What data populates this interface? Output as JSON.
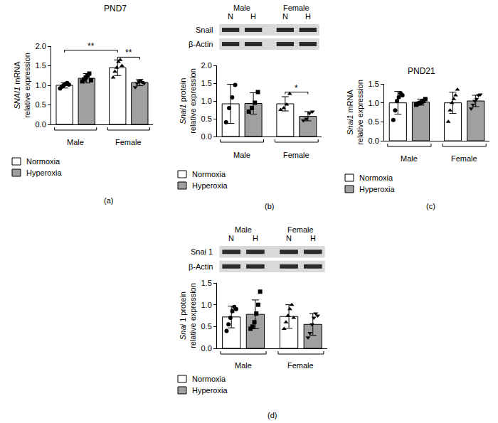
{
  "chart_data": [
    {
      "type": "bar",
      "panel": "(a)",
      "title": "PND7",
      "y_label": [
        "SNAI1 mRNA",
        "relative expression"
      ],
      "categories": [
        "Male",
        "Female"
      ],
      "series": [
        {
          "name": "Normoxia",
          "color": "#ffffff",
          "values": [
            1.0,
            1.45
          ],
          "errors": [
            0.07,
            0.2
          ],
          "markers": [
            "circle",
            "triangle-up"
          ],
          "points": [
            [
              0.92,
              0.97,
              1.0,
              1.03,
              1.06,
              1.02
            ],
            [
              1.2,
              1.35,
              1.45,
              1.6,
              1.65,
              1.5
            ]
          ]
        },
        {
          "name": "Hyperoxia",
          "color": "#a0a0a0",
          "values": [
            1.18,
            1.07
          ],
          "errors": [
            0.12,
            0.08
          ],
          "markers": [
            "square",
            "triangle-down"
          ],
          "points": [
            [
              1.1,
              1.15,
              1.2,
              1.25,
              1.3,
              1.13
            ],
            [
              0.95,
              1.05,
              1.1,
              1.12,
              1.08,
              1.05
            ]
          ]
        }
      ],
      "ylim": [
        0,
        2.0
      ],
      "yticks": [
        {
          "value": 0,
          "label": "0.0"
        },
        0.5,
        {
          "value": 1,
          "label": "1.0"
        },
        1.5,
        {
          "value": 2,
          "label": "2.0"
        }
      ],
      "significance": [
        {
          "text": "**",
          "from": 0,
          "to": 2,
          "y": 1.9
        },
        {
          "text": "**",
          "from": 2,
          "to": 3,
          "y": 1.72
        }
      ],
      "tick_labels": "y"
    },
    {
      "type": "bar",
      "panel": "(b)",
      "y_label": [
        "Snai1 protein",
        "relative expression"
      ],
      "blot": {
        "groups": [
          "Male",
          "Female"
        ],
        "lanes": [
          "N",
          "H",
          "N",
          "H"
        ],
        "rows": [
          "Snail",
          "β-Actin"
        ]
      },
      "categories": [
        "Male",
        "Female"
      ],
      "series": [
        {
          "name": "Normoxia",
          "color": "#ffffff",
          "values": [
            0.92,
            0.92
          ],
          "errors": [
            0.55,
            0.2
          ],
          "markers": [
            "circle",
            "triangle-up"
          ],
          "points": [
            [
              0.4,
              0.8,
              1.1,
              1.45
            ],
            [
              0.75,
              0.8,
              0.9,
              1.2
            ]
          ]
        },
        {
          "name": "Hyperoxia",
          "color": "#a0a0a0",
          "values": [
            0.93,
            0.57
          ],
          "errors": [
            0.3,
            0.13
          ],
          "markers": [
            "square",
            "triangle-down"
          ],
          "points": [
            [
              0.7,
              0.8,
              0.95,
              1.25
            ],
            [
              0.45,
              0.5,
              0.65,
              0.7
            ]
          ]
        }
      ],
      "ylim": [
        0,
        2.0
      ],
      "yticks": [
        {
          "value": 0,
          "label": "0.0"
        },
        0.5,
        {
          "value": 1,
          "label": "1.0"
        },
        1.5,
        {
          "value": 2,
          "label": "2.0"
        }
      ],
      "significance": [
        {
          "text": "*",
          "from": 2,
          "to": 3,
          "y": 1.25
        }
      ],
      "tick_labels": "y"
    },
    {
      "type": "bar",
      "panel": "(c)",
      "title": "PND21",
      "y_label": [
        "Snai1 mRNA",
        "relative expression"
      ],
      "categories": [
        "Male",
        "Female"
      ],
      "series": [
        {
          "name": "Normoxia",
          "color": "#ffffff",
          "values": [
            1.0,
            1.0
          ],
          "errors": [
            0.3,
            0.28
          ],
          "markers": [
            "circle",
            "triangle-up"
          ],
          "points": [
            [
              0.55,
              0.8,
              1.05,
              1.15,
              1.25,
              1.2
            ],
            [
              0.5,
              0.8,
              1.0,
              1.1,
              1.2,
              1.35
            ]
          ]
        },
        {
          "name": "Hyperoxia",
          "color": "#a0a0a0",
          "values": [
            1.02,
            1.05
          ],
          "errors": [
            0.08,
            0.15
          ],
          "markers": [
            "square",
            "triangle-down"
          ],
          "points": [
            [
              0.95,
              0.98,
              1.0,
              1.02,
              1.05,
              1.1
            ],
            [
              0.85,
              0.95,
              1.05,
              1.1,
              1.2,
              1.22
            ]
          ]
        }
      ],
      "ylim": [
        0,
        1.5
      ],
      "yticks": [
        {
          "value": 0,
          "label": "0.0"
        },
        0.5,
        {
          "value": 1,
          "label": "1.0"
        },
        1.5
      ],
      "tick_labels": "y"
    },
    {
      "type": "bar",
      "panel": "(d)",
      "y_label": [
        "Snai 1 protein",
        "relative expression"
      ],
      "blot": {
        "groups": [
          "Male",
          "Female"
        ],
        "lanes": [
          "N",
          "H",
          "N",
          "H"
        ],
        "rows": [
          "Snai 1",
          "β-Actin"
        ]
      },
      "categories": [
        "Male",
        "Female"
      ],
      "series": [
        {
          "name": "Normoxia",
          "color": "#ffffff",
          "values": [
            0.72,
            0.73
          ],
          "errors": [
            0.25,
            0.27
          ],
          "markers": [
            "circle",
            "triangle-up"
          ],
          "points": [
            [
              0.4,
              0.55,
              0.7,
              0.85,
              0.95,
              0.9
            ],
            [
              0.45,
              0.6,
              0.75,
              0.9,
              1.0,
              0.7
            ]
          ]
        },
        {
          "name": "Hyperoxia",
          "color": "#a0a0a0",
          "values": [
            0.78,
            0.55
          ],
          "errors": [
            0.33,
            0.25
          ],
          "markers": [
            "square",
            "triangle-down"
          ],
          "points": [
            [
              0.45,
              0.5,
              0.6,
              0.8,
              1.0,
              1.3
            ],
            [
              0.25,
              0.35,
              0.55,
              0.7,
              0.8,
              0.75
            ]
          ]
        }
      ],
      "ylim": [
        0,
        1.5
      ],
      "yticks": [
        {
          "value": 0,
          "label": "0.0"
        },
        0.5,
        {
          "value": 1,
          "label": "1.0"
        },
        1.5
      ],
      "tick_labels": "y"
    }
  ]
}
